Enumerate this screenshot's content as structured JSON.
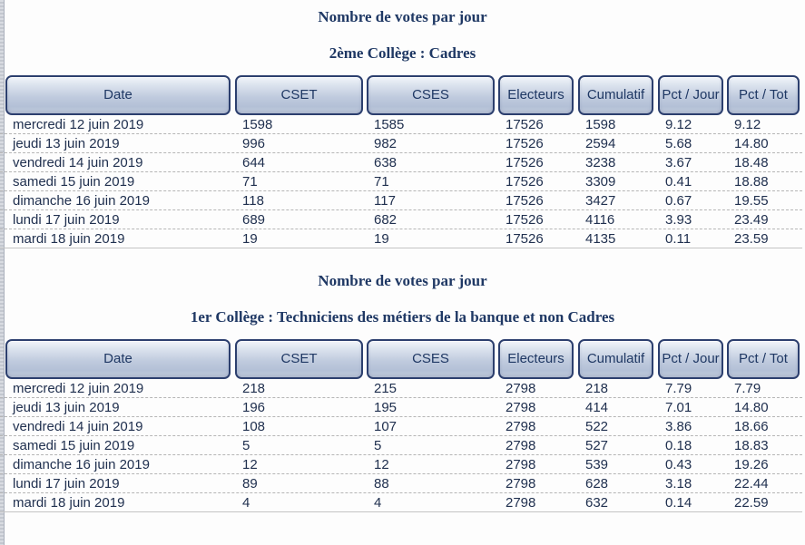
{
  "colors": {
    "accent": "#1f3864",
    "btn-border": "#2c3f6e",
    "text": "#20304f",
    "sep": "#b5b5b5"
  },
  "tables": [
    {
      "title": "Nombre de votes par jour",
      "subtitle": "2ème Collège : Cadres",
      "columns": [
        "Date",
        "CSET",
        "CSES",
        "Electeurs",
        "Cumulatif",
        "Pct / Jour",
        "Pct / Tot"
      ],
      "rows": [
        [
          "mercredi 12 juin 2019",
          "1598",
          "1585",
          "17526",
          "1598",
          "9.12",
          "9.12"
        ],
        [
          "jeudi 13 juin 2019",
          "996",
          "982",
          "17526",
          "2594",
          "5.68",
          "14.80"
        ],
        [
          "vendredi 14 juin 2019",
          "644",
          "638",
          "17526",
          "3238",
          "3.67",
          "18.48"
        ],
        [
          "samedi 15 juin 2019",
          "71",
          "71",
          "17526",
          "3309",
          "0.41",
          "18.88"
        ],
        [
          "dimanche 16 juin 2019",
          "118",
          "117",
          "17526",
          "3427",
          "0.67",
          "19.55"
        ],
        [
          "lundi 17 juin 2019",
          "689",
          "682",
          "17526",
          "4116",
          "3.93",
          "23.49"
        ],
        [
          "mardi 18 juin 2019",
          "19",
          "19",
          "17526",
          "4135",
          "0.11",
          "23.59"
        ]
      ]
    },
    {
      "title": "Nombre de votes par jour",
      "subtitle": "1er Collège : Techniciens des métiers de la banque et non Cadres",
      "columns": [
        "Date",
        "CSET",
        "CSES",
        "Electeurs",
        "Cumulatif",
        "Pct / Jour",
        "Pct / Tot"
      ],
      "rows": [
        [
          "mercredi 12 juin 2019",
          "218",
          "215",
          "2798",
          "218",
          "7.79",
          "7.79"
        ],
        [
          "jeudi 13 juin 2019",
          "196",
          "195",
          "2798",
          "414",
          "7.01",
          "14.80"
        ],
        [
          "vendredi 14 juin 2019",
          "108",
          "107",
          "2798",
          "522",
          "3.86",
          "18.66"
        ],
        [
          "samedi 15 juin 2019",
          "5",
          "5",
          "2798",
          "527",
          "0.18",
          "18.83"
        ],
        [
          "dimanche 16 juin 2019",
          "12",
          "12",
          "2798",
          "539",
          "0.43",
          "19.26"
        ],
        [
          "lundi 17 juin 2019",
          "89",
          "88",
          "2798",
          "628",
          "3.18",
          "22.44"
        ],
        [
          "mardi 18 juin 2019",
          "4",
          "4",
          "2798",
          "632",
          "0.14",
          "22.59"
        ]
      ]
    }
  ]
}
